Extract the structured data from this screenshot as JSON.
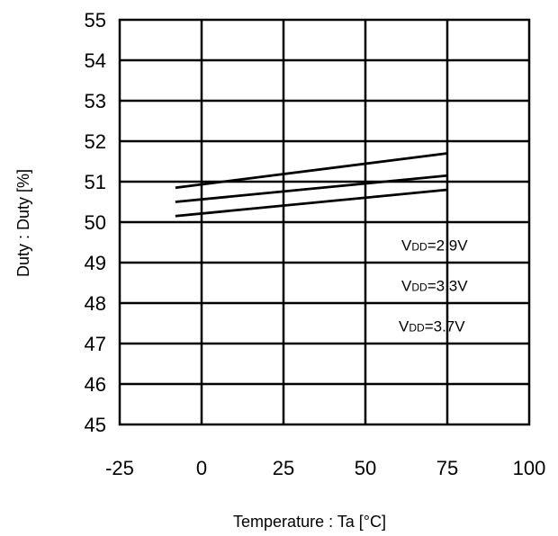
{
  "chart_data": {
    "type": "line",
    "title": "",
    "xlabel": "Temperature : Ta [°C]",
    "ylabel": "Duty : Duty [%]",
    "xlim": [
      -25,
      100
    ],
    "ylim": [
      45,
      55
    ],
    "x_ticks": [
      -25,
      0,
      25,
      50,
      75,
      100
    ],
    "y_ticks": [
      45,
      46,
      47,
      48,
      49,
      50,
      51,
      52,
      53,
      54,
      55
    ],
    "grid": true,
    "series": [
      {
        "name": "VDD=2.9V",
        "x": [
          -8,
          75
        ],
        "values": [
          50.85,
          51.7
        ]
      },
      {
        "name": "VDD=3.3V",
        "x": [
          -8,
          75
        ],
        "values": [
          50.5,
          51.15
        ]
      },
      {
        "name": "VDD=3.7V",
        "x": [
          -8,
          75
        ],
        "values": [
          50.15,
          50.8
        ]
      }
    ],
    "legend": [
      {
        "main": "V",
        "sub": "DD",
        "rest": "=2.9V"
      },
      {
        "main": "V",
        "sub": "DD",
        "rest": "=3.3V"
      },
      {
        "main": "V",
        "sub": "DD",
        "rest": "=3.7V"
      }
    ]
  }
}
